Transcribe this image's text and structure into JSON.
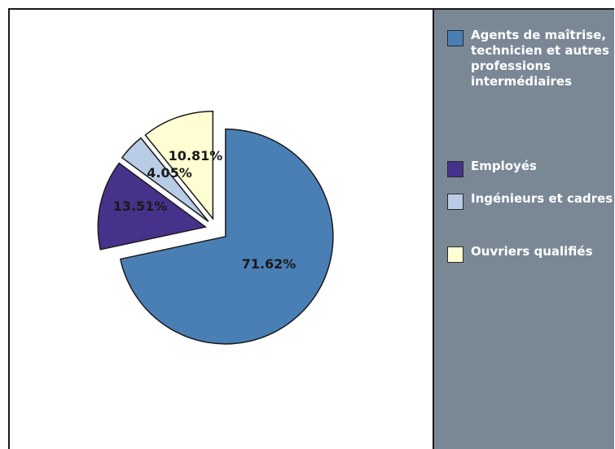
{
  "chart_data": {
    "type": "pie",
    "categories": [
      "Agents de maîtrise, technicien et autres professions intermédiaires",
      "Employés",
      "Ingénieurs et cadres",
      "Ouvriers qualifiés"
    ],
    "values": [
      71.62,
      13.51,
      4.05,
      10.81
    ],
    "value_labels": [
      "71.62%",
      "13.51%",
      "4.05%",
      "10.81%"
    ],
    "colors": [
      "#4a7fb6",
      "#46328a",
      "#b8cce6",
      "#fffdd2"
    ],
    "exploded": [
      true,
      true,
      true,
      true
    ],
    "start_angle_deg": 0,
    "direction": "clockwise",
    "legend_position": "right"
  },
  "legend": {
    "items": [
      {
        "label": "Agents de maîtrise, technicien et autres professions intermédiaires",
        "color": "#4a7fb6"
      },
      {
        "label": "Employés",
        "color": "#46328a"
      },
      {
        "label": "Ingénieurs et cadres",
        "color": "#b8cce6"
      },
      {
        "label": "Ouvriers qualifiés",
        "color": "#fffdd2"
      }
    ]
  }
}
